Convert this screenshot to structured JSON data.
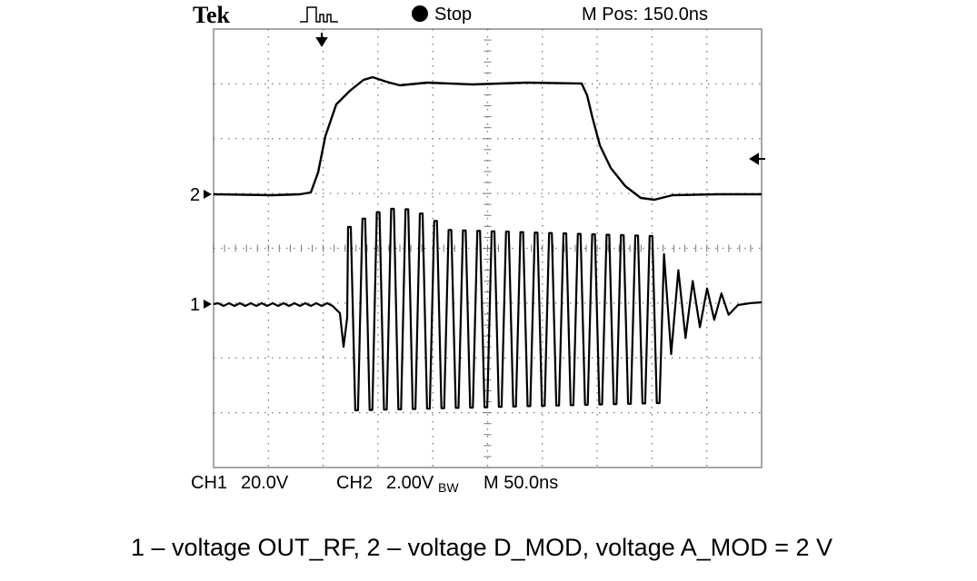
{
  "screen": {
    "brand": "Tek",
    "run_state": "Stop",
    "position": "M Pos: 150.0ns",
    "channel_markers": [
      "2",
      "1"
    ],
    "ch1_label": "CH1",
    "ch1_scale": "20.0V",
    "ch2_label": "CH2",
    "ch2_scale": "2.00V",
    "ch2_bandwidth": "BW",
    "timebase": "M 50.0ns"
  },
  "caption": "1 – voltage OUT_RF, 2 – voltage D_MOD, voltage A_MOD = 2 V"
}
